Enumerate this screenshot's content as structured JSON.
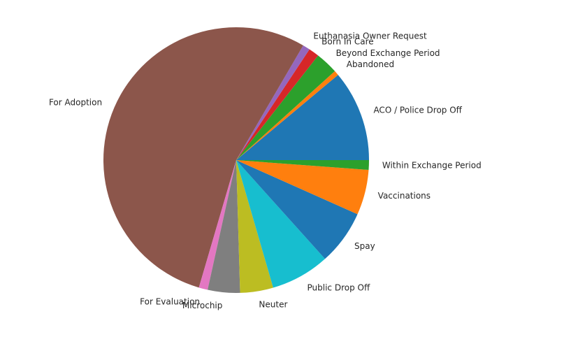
{
  "chart_data": {
    "type": "pie",
    "title": "",
    "start_angle_deg": 0,
    "direction": "counterclockwise",
    "slices": [
      {
        "label": "ACO / Police Drop Off",
        "value": 11.3,
        "color": "#1f77b4"
      },
      {
        "label": "Abandoned",
        "value": 0.6,
        "color": "#ff7f0e"
      },
      {
        "label": "Beyond Exchange Period",
        "value": 2.8,
        "color": "#2ca02c"
      },
      {
        "label": "Born In Care",
        "value": 1.3,
        "color": "#d62728"
      },
      {
        "label": "Euthanasia Owner Request",
        "value": 0.9,
        "color": "#9467bd"
      },
      {
        "label": "For Adoption",
        "value": 54.9,
        "color": "#8c564b"
      },
      {
        "label": "For Evaluation",
        "value": 1.1,
        "color": "#e377c2"
      },
      {
        "label": "Microchip",
        "value": 4.0,
        "color": "#7f7f7f"
      },
      {
        "label": "Neuter",
        "value": 4.1,
        "color": "#bcbd22"
      },
      {
        "label": "Public Drop Off",
        "value": 7.3,
        "color": "#17becf"
      },
      {
        "label": "Spay",
        "value": 6.8,
        "color": "#1f77b4"
      },
      {
        "label": "Vaccinations",
        "value": 5.6,
        "color": "#ff7f0e"
      },
      {
        "label": "Within Exchange Period",
        "value": 1.2,
        "color": "#2ca02c"
      }
    ]
  }
}
